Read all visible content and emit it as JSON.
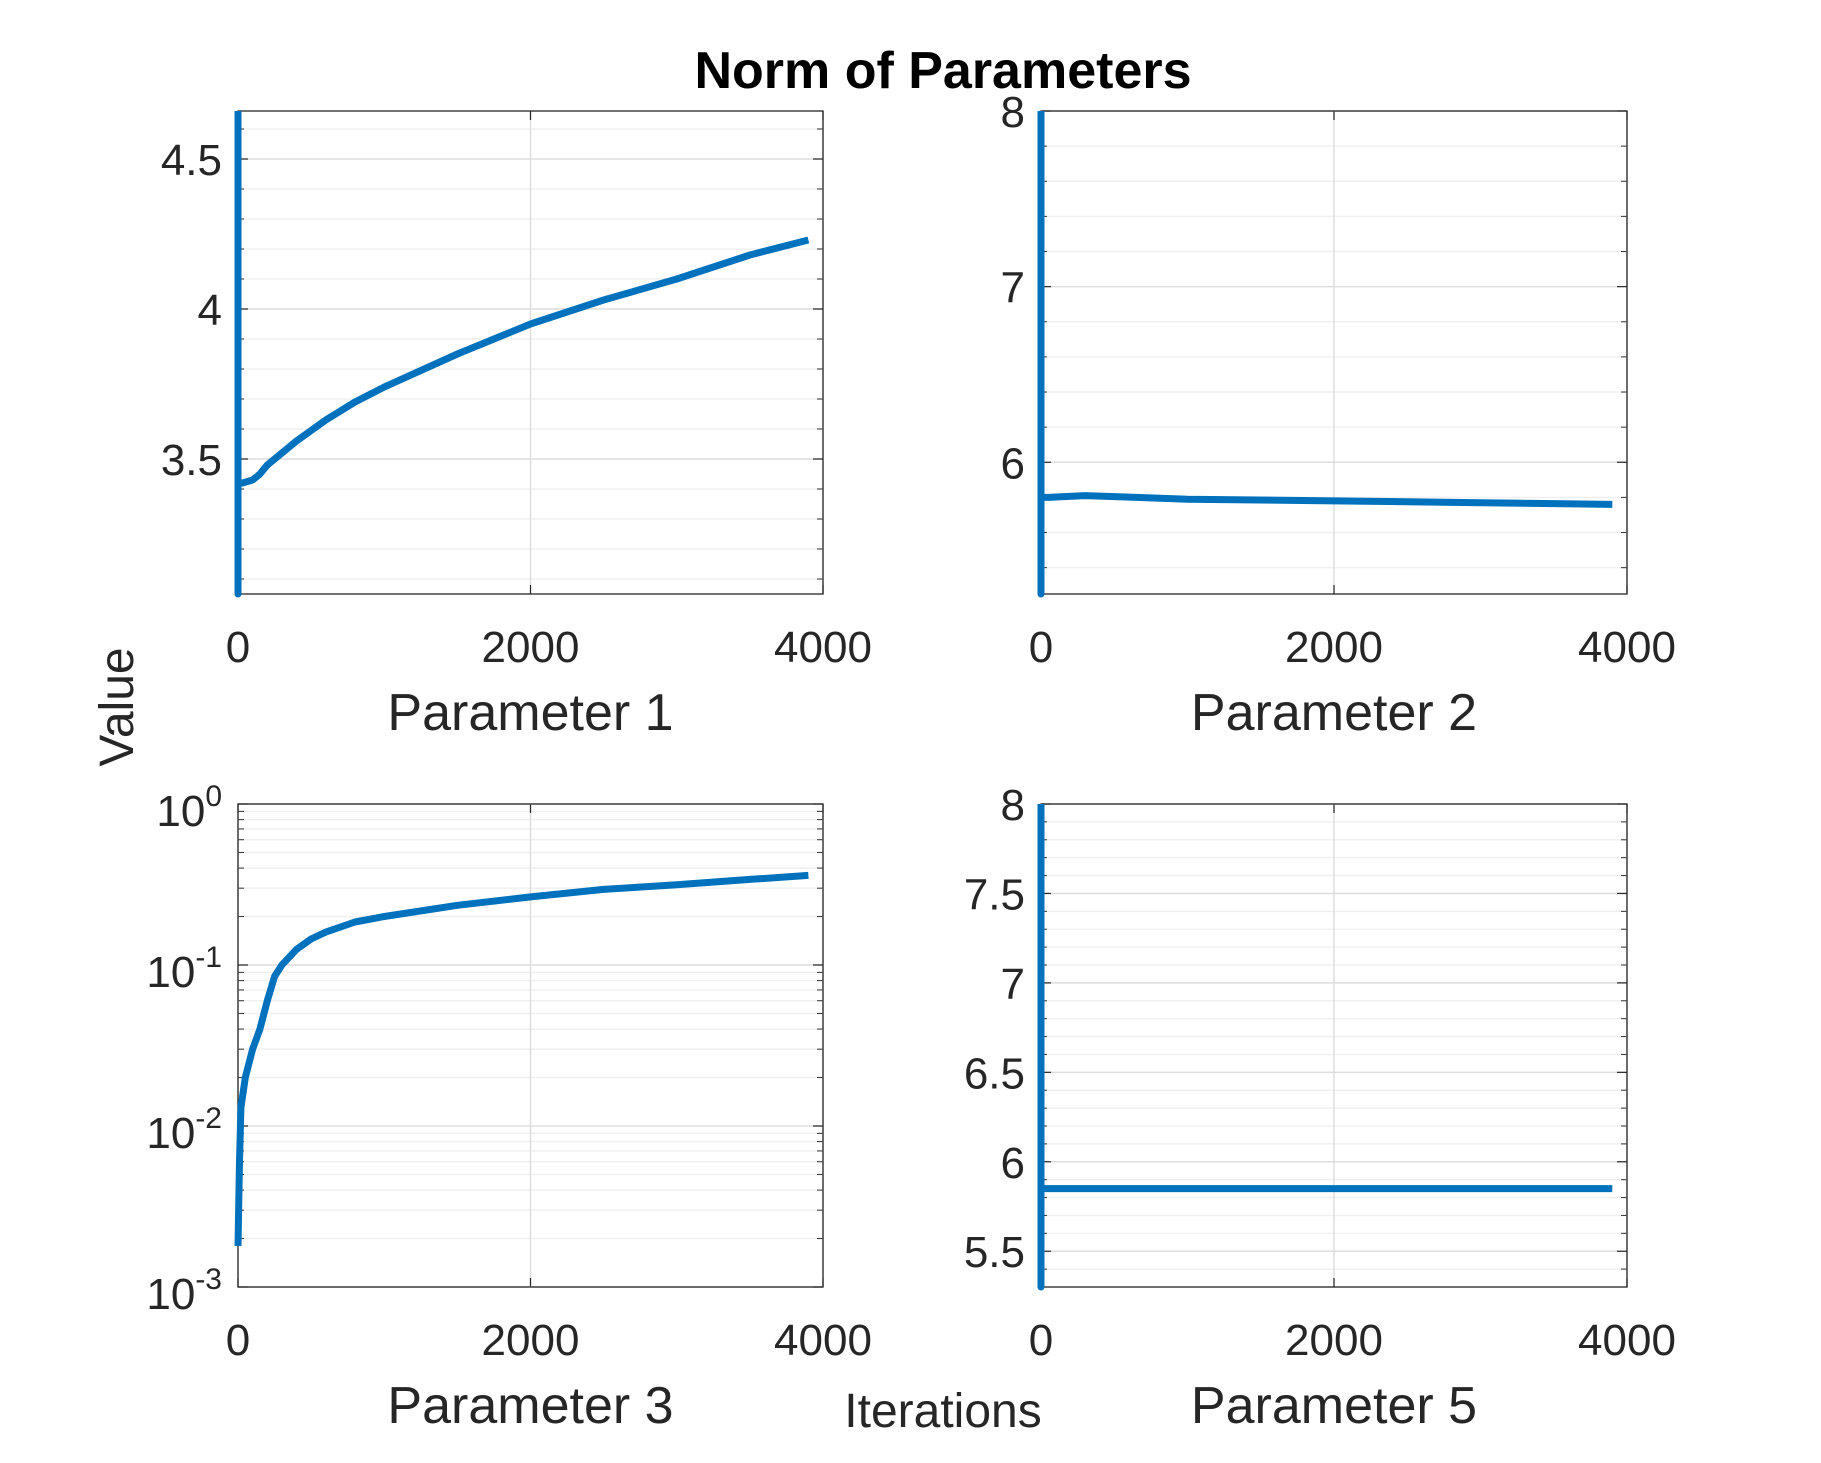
{
  "figure": {
    "title": "Norm of Parameters",
    "xlabel": "Iterations",
    "ylabel": "Value",
    "line_color": "#0072BD"
  },
  "chart_data": [
    {
      "type": "line",
      "xlabel": "Parameter 1",
      "xlim": [
        0,
        4000
      ],
      "ylim": [
        3.05,
        4.66
      ],
      "yscale": "linear",
      "grid": true,
      "xticks": [
        0,
        2000,
        4000
      ],
      "xtick_labels": [
        "0",
        "2000",
        "4000"
      ],
      "yticks": [
        3.5,
        4,
        4.5
      ],
      "ytick_labels": [
        "3.5",
        "4",
        "4.5"
      ],
      "series": [
        {
          "x": [
            0,
            0,
            0,
            30,
            100,
            150,
            200,
            300,
            400,
            600,
            800,
            1000,
            1500,
            2000,
            2500,
            3000,
            3500,
            3900
          ],
          "y": [
            4.66,
            3.05,
            3.42,
            3.42,
            3.43,
            3.45,
            3.48,
            3.52,
            3.56,
            3.63,
            3.69,
            3.74,
            3.85,
            3.95,
            4.03,
            4.1,
            4.18,
            4.23
          ]
        }
      ]
    },
    {
      "type": "line",
      "xlabel": "Parameter 2",
      "xlim": [
        0,
        4000
      ],
      "ylim": [
        5.25,
        8
      ],
      "yscale": "linear",
      "grid": true,
      "xticks": [
        0,
        2000,
        4000
      ],
      "xtick_labels": [
        "0",
        "2000",
        "4000"
      ],
      "yticks": [
        6,
        7,
        8
      ],
      "ytick_labels": [
        "6",
        "7",
        "8"
      ],
      "series": [
        {
          "x": [
            0,
            0,
            0,
            50,
            300,
            1000,
            2000,
            3000,
            3900
          ],
          "y": [
            8,
            5.25,
            5.8,
            5.8,
            5.81,
            5.79,
            5.78,
            5.77,
            5.76
          ]
        }
      ]
    },
    {
      "type": "line",
      "xlabel": "Parameter 3",
      "xlim": [
        0,
        4000
      ],
      "ylim": [
        0.001,
        1
      ],
      "yscale": "log",
      "grid": true,
      "xticks": [
        0,
        2000,
        4000
      ],
      "xtick_labels": [
        "0",
        "2000",
        "4000"
      ],
      "yticks": [
        0.001,
        0.01,
        0.1,
        1
      ],
      "ytick_labels": [
        {
          "base": "10",
          "exp": "-3"
        },
        {
          "base": "10",
          "exp": "-2"
        },
        {
          "base": "10",
          "exp": "-1"
        },
        {
          "base": "10",
          "exp": "0"
        }
      ],
      "series": [
        {
          "x": [
            0,
            10,
            20,
            50,
            100,
            150,
            200,
            250,
            300,
            400,
            500,
            600,
            800,
            1000,
            1500,
            2000,
            2500,
            3000,
            3500,
            3900
          ],
          "y": [
            0.0018,
            0.006,
            0.013,
            0.02,
            0.03,
            0.04,
            0.06,
            0.085,
            0.1,
            0.125,
            0.145,
            0.16,
            0.185,
            0.2,
            0.235,
            0.265,
            0.295,
            0.315,
            0.34,
            0.36
          ]
        }
      ]
    },
    {
      "type": "line",
      "xlabel": "Parameter 5",
      "xlim": [
        0,
        4000
      ],
      "ylim": [
        5.3,
        8
      ],
      "yscale": "linear",
      "grid": true,
      "xticks": [
        0,
        2000,
        4000
      ],
      "xtick_labels": [
        "0",
        "2000",
        "4000"
      ],
      "yticks": [
        5.5,
        6,
        6.5,
        7,
        7.5,
        8
      ],
      "ytick_labels": [
        "5.5",
        "6",
        "6.5",
        "7",
        "7.5",
        "8"
      ],
      "series": [
        {
          "x": [
            0,
            0,
            0,
            50,
            1000,
            2000,
            3000,
            3900
          ],
          "y": [
            8,
            5.3,
            5.85,
            5.85,
            5.85,
            5.85,
            5.85,
            5.85
          ]
        }
      ]
    }
  ]
}
